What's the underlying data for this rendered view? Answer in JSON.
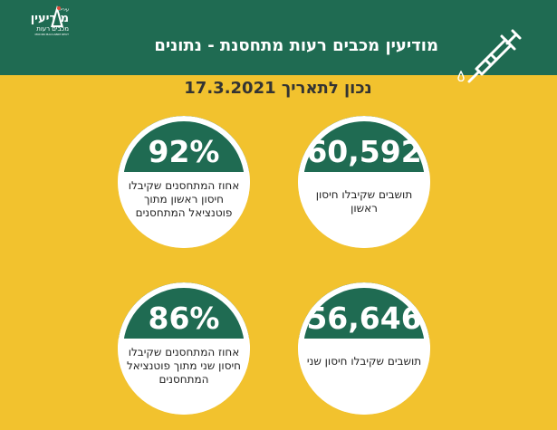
{
  "logo": {
    "small": "עיריית",
    "big": "מודיעין",
    "mid": "מכבים רעות",
    "tiny": "MODIIN MACCABIM REUT"
  },
  "header": {
    "title": "מודיעין מכבים רעות מתחסנת - נתונים"
  },
  "date_line": "נכון לתאריך  17.3.2021",
  "colors": {
    "green": "#1f6b52",
    "yellow": "#f2c22e"
  },
  "cards": [
    {
      "value": "92%",
      "description": "אחוז המתחסנים שקיבלו חיסון ראשון מתוך פוטנציאל המתחסנים"
    },
    {
      "value": "60,592",
      "description": "תושבים שקיבלו חיסון ראשון"
    },
    {
      "value": "86%",
      "description": "אחוז המתחסנים שקיבלו חיסון שני מתוך פוטנציאל המתחסנים"
    },
    {
      "value": "56,646",
      "description": "תושבים שקיבלו חיסון שני"
    }
  ]
}
